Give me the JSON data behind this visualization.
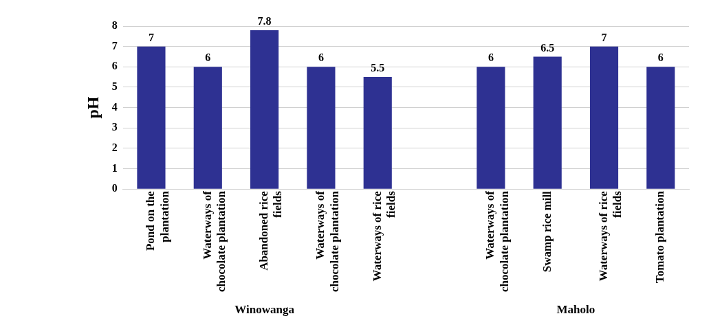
{
  "chart_data": {
    "type": "bar",
    "ylabel": "pH",
    "categories": [
      "Pond on the plantation",
      "Waterways of chocolate plantation",
      "Abandoned rice fields",
      "Waterways of chocolate plantation",
      "Waterways of rice fields",
      null,
      "Waterways of chocolate plantation",
      "Swamp rice mill",
      "Waterways of rice fields",
      "Tomato plantation"
    ],
    "values": [
      7,
      6,
      7.8,
      6,
      5.5,
      null,
      6,
      6.5,
      7,
      6
    ],
    "color": "#2e3192",
    "ylim": [
      0,
      8
    ],
    "yticks": [
      0,
      1,
      2,
      3,
      4,
      5,
      6,
      7,
      8
    ],
    "grid": "y",
    "data_labels": true,
    "legend": false,
    "annotations": [
      "Winowanga",
      "Maholo"
    ]
  }
}
